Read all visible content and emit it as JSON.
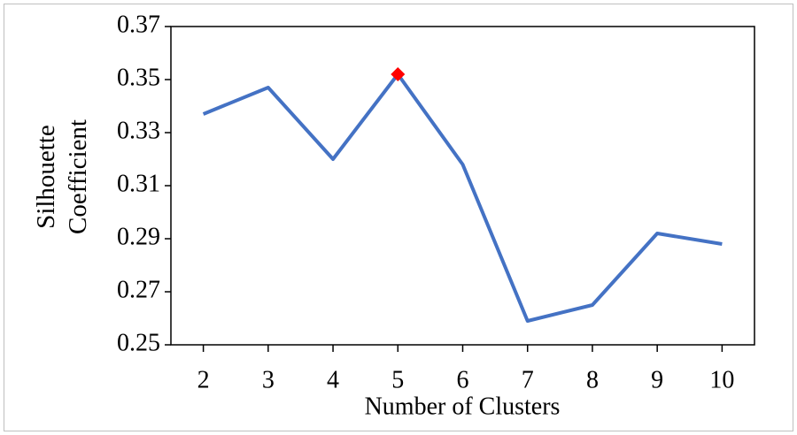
{
  "chart_data": {
    "type": "line",
    "xlabel": "Number of Clusters",
    "ylabel": "Silhouette Coefficient",
    "categories": [
      "2",
      "3",
      "4",
      "5",
      "6",
      "7",
      "8",
      "9",
      "10"
    ],
    "series": [
      {
        "color": "#4472c4",
        "values": [
          0.337,
          0.347,
          0.32,
          0.352,
          0.318,
          0.259,
          0.265,
          0.292,
          0.288
        ]
      }
    ],
    "highlight": {
      "category": "5",
      "color": "#ff0000"
    },
    "ylim": [
      0.25,
      0.37
    ],
    "yticks": [
      0.25,
      0.27,
      0.29,
      0.31,
      0.33,
      0.35,
      0.37
    ]
  }
}
